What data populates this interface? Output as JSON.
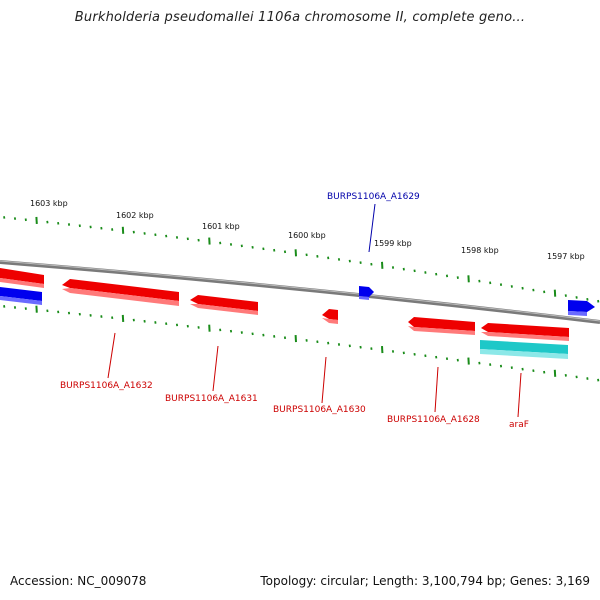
{
  "title": "Burkholderia pseudomallei 1106a chromosome II, complete geno...",
  "footer": {
    "accession": "Accession: NC_009078",
    "summary": "Topology: circular; Length: 3,100,794 bp; Genes: 3,169"
  },
  "colors": {
    "forward_gene": "#0000ee",
    "reverse_gene": "#ee0000",
    "rna_gene": "#1ec8c8",
    "backbone": "#808080",
    "ticks": "#1a8c1a",
    "label_blue": "#0000aa",
    "label_red": "#cc0000"
  },
  "ruler_labels": [
    "1603 kbp",
    "1602 kbp",
    "1601 kbp",
    "1600 kbp",
    "1599 kbp",
    "1598 kbp",
    "1597 kbp"
  ],
  "genes": [
    {
      "strand": "reverse",
      "type": "cds"
    },
    {
      "strand": "forward",
      "type": "cds"
    },
    {
      "strand": "reverse",
      "type": "cds"
    },
    {
      "strand": "reverse",
      "type": "cds"
    },
    {
      "strand": "reverse",
      "type": "cds"
    },
    {
      "strand": "forward",
      "type": "cds"
    },
    {
      "strand": "reverse",
      "type": "cds"
    },
    {
      "strand": "reverse",
      "type": "cds"
    },
    {
      "strand": "reverse",
      "type": "cds"
    },
    {
      "strand": "reverse",
      "type": "rna"
    },
    {
      "strand": "forward",
      "type": "cds"
    }
  ],
  "gene_labels": [
    {
      "name": "BURPS1106A_A1629",
      "color": "blue"
    },
    {
      "name": "BURPS1106A_A1632",
      "color": "red"
    },
    {
      "name": "BURPS1106A_A1631",
      "color": "red"
    },
    {
      "name": "BURPS1106A_A1630",
      "color": "red"
    },
    {
      "name": "BURPS1106A_A1628",
      "color": "red"
    },
    {
      "name": "araF",
      "color": "red"
    }
  ]
}
